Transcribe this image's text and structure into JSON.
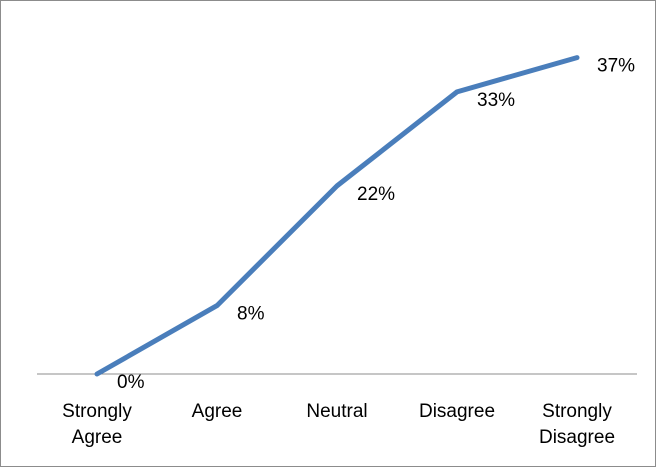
{
  "chart_data": {
    "type": "line",
    "categories": [
      [
        "Strongly",
        "Agree"
      ],
      [
        "Agree"
      ],
      [
        "Neutral"
      ],
      [
        "Disagree"
      ],
      [
        "Strongly",
        "Disagree"
      ]
    ],
    "series": [
      {
        "values": [
          0,
          8,
          22,
          33,
          37
        ],
        "data_labels": [
          "0%",
          "8%",
          "22%",
          "33%",
          "37%"
        ],
        "color": "#4a7ebb"
      }
    ],
    "ylim": [
      0,
      40
    ],
    "grid": false,
    "legend": "none"
  }
}
